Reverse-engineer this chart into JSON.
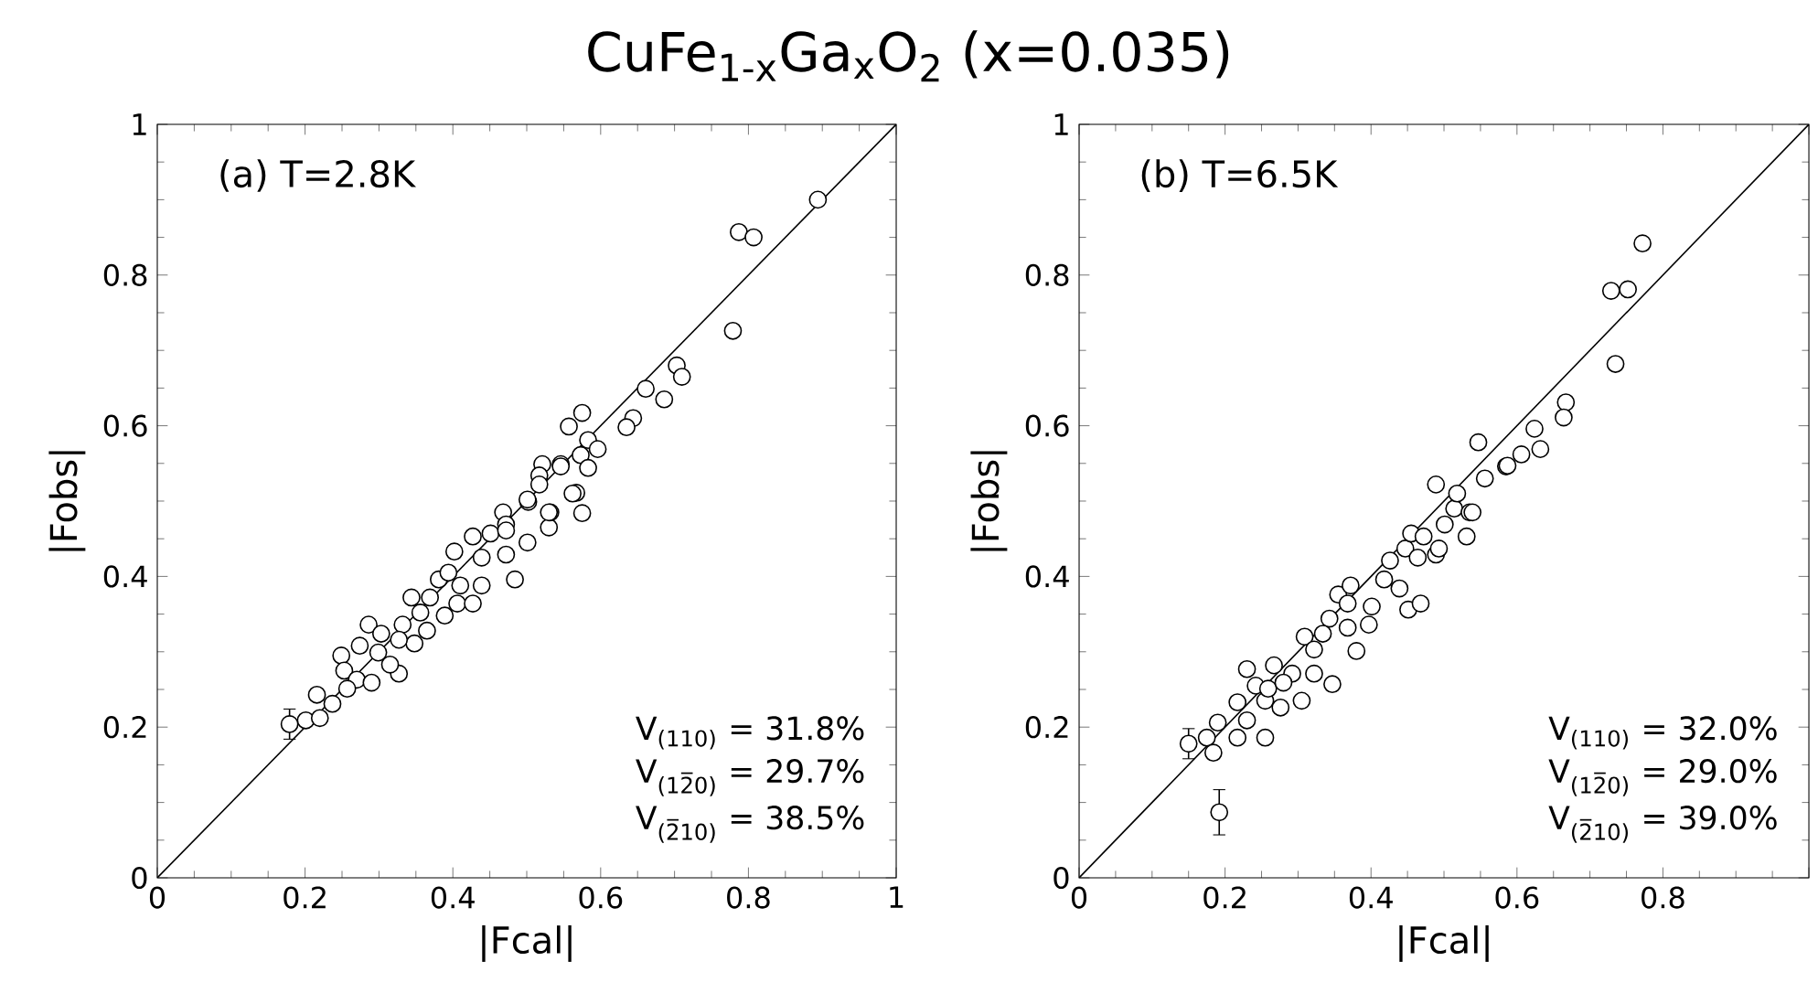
{
  "chart_data": [
    {
      "type": "scatter",
      "title": "CuFe$_{1-x}$Ga$_{x}$O$_{2}$ (x=0.035)",
      "xlabel": "|Fcal|",
      "ylabel": "|Fobs|",
      "xlim": [
        0,
        1
      ],
      "ylim": [
        0,
        1
      ],
      "xticks": [
        0,
        0.2,
        0.4,
        0.6,
        0.8,
        1
      ],
      "yticks": [
        0,
        0.2,
        0.4,
        0.6,
        0.8,
        1
      ],
      "marker": "circle",
      "annotations": [
        "(a) T=2.8K",
        "V$_{(110)}$ = 31.8%",
        "V$_{(12̅0)}$ = 29.7%",
        "V$_{(2̅10)}$ = 38.5%"
      ],
      "series": [
        {
          "color": "#000000",
          "x": [
            0.894,
            0.787,
            0.807,
            0.779,
            0.703,
            0.71,
            0.661,
            0.686,
            0.644,
            0.635,
            0.575,
            0.557,
            0.583,
            0.596,
            0.546,
            0.521,
            0.573,
            0.583,
            0.517,
            0.567,
            0.575,
            0.53,
            0.502,
            0.532,
            0.468,
            0.472,
            0.179,
            0.201,
            0.22,
            0.216,
            0.237,
            0.249,
            0.253,
            0.27,
            0.274,
            0.29,
            0.286,
            0.303,
            0.299,
            0.327,
            0.315,
            0.332,
            0.348,
            0.344,
            0.356,
            0.369,
            0.365,
            0.381,
            0.394,
            0.41,
            0.406,
            0.389,
            0.402,
            0.427,
            0.439,
            0.439,
            0.427,
            0.451,
            0.472,
            0.484,
            0.501,
            0.472,
            0.501,
            0.53,
            0.517,
            0.546,
            0.562,
            0.257,
            0.327
          ],
          "values": [
            0.9,
            0.857,
            0.85,
            0.726,
            0.68,
            0.665,
            0.649,
            0.635,
            0.61,
            0.598,
            0.617,
            0.599,
            0.581,
            0.569,
            0.549,
            0.549,
            0.561,
            0.544,
            0.534,
            0.511,
            0.484,
            0.465,
            0.499,
            0.485,
            0.485,
            0.469,
            0.204,
            0.209,
            0.212,
            0.243,
            0.231,
            0.295,
            0.275,
            0.263,
            0.308,
            0.259,
            0.336,
            0.324,
            0.299,
            0.271,
            0.283,
            0.336,
            0.311,
            0.372,
            0.352,
            0.372,
            0.328,
            0.396,
            0.405,
            0.388,
            0.364,
            0.348,
            0.433,
            0.453,
            0.425,
            0.388,
            0.364,
            0.457,
            0.429,
            0.396,
            0.445,
            0.461,
            0.502,
            0.485,
            0.522,
            0.546,
            0.51,
            0.251,
            0.316
          ],
          "errors": [
            null,
            null,
            null,
            null,
            null,
            null,
            null,
            null,
            null,
            null,
            null,
            null,
            null,
            null,
            null,
            null,
            null,
            null,
            null,
            null,
            null,
            null,
            null,
            null,
            null,
            null,
            0.02,
            null,
            null,
            null,
            null,
            null,
            null,
            null,
            null,
            null,
            null,
            null,
            null,
            null,
            null,
            null,
            null,
            null,
            null,
            null,
            null,
            null,
            null,
            null,
            null,
            null,
            null,
            null,
            null,
            null,
            null,
            null,
            null,
            null,
            null,
            null,
            null,
            null,
            null,
            null,
            null,
            null,
            null
          ]
        },
        {
          "type": "line",
          "marker": "none",
          "color": "#000000",
          "x": [
            0,
            1
          ],
          "values": [
            0,
            1
          ]
        }
      ]
    },
    {
      "type": "scatter",
      "xlabel": "|Fcal|",
      "ylabel": "|Fobs|",
      "xlim": [
        0,
        1
      ],
      "ylim": [
        0,
        1
      ],
      "xticks": [
        0,
        0.2,
        0.4,
        0.6,
        0.8,
        {
          "value": 1,
          "label": null
        }
      ],
      "yticks": [
        0,
        0.2,
        0.4,
        0.6,
        0.8,
        1
      ],
      "marker": "circle",
      "annotations": [
        "(b) T=6.5K",
        "V$_{(110)}$ = 32.0%",
        "V$_{(12̅0)}$ = 29.0%",
        "V$_{(2̅10)}$ = 39.0%"
      ],
      "series": [
        {
          "color": "#000000",
          "x": [
            0.192,
            0.15,
            0.175,
            0.184,
            0.19,
            0.217,
            0.255,
            0.23,
            0.217,
            0.255,
            0.23,
            0.242,
            0.267,
            0.259,
            0.292,
            0.305,
            0.276,
            0.28,
            0.322,
            0.347,
            0.309,
            0.322,
            0.343,
            0.334,
            0.355,
            0.368,
            0.372,
            0.368,
            0.38,
            0.397,
            0.401,
            0.418,
            0.426,
            0.439,
            0.451,
            0.468,
            0.447,
            0.455,
            0.472,
            0.464,
            0.489,
            0.493,
            0.501,
            0.514,
            0.531,
            0.535,
            0.489,
            0.518,
            0.556,
            0.585,
            0.547,
            0.772,
            0.729,
            0.752,
            0.735,
            0.667,
            0.664,
            0.624,
            0.632,
            0.606,
            0.587,
            0.539
          ],
          "values": [
            0.087,
            0.178,
            0.186,
            0.166,
            0.206,
            0.186,
            0.186,
            0.209,
            0.233,
            0.235,
            0.277,
            0.255,
            0.282,
            0.251,
            0.271,
            0.235,
            0.226,
            0.259,
            0.271,
            0.257,
            0.32,
            0.303,
            0.344,
            0.324,
            0.376,
            0.364,
            0.388,
            0.332,
            0.301,
            0.336,
            0.36,
            0.396,
            0.421,
            0.384,
            0.356,
            0.364,
            0.437,
            0.457,
            0.453,
            0.425,
            0.429,
            0.437,
            0.469,
            0.49,
            0.453,
            0.485,
            0.522,
            0.51,
            0.53,
            0.546,
            0.578,
            0.842,
            0.779,
            0.781,
            0.682,
            0.631,
            0.611,
            0.596,
            0.569,
            0.562,
            0.547,
            0.485
          ],
          "errors": [
            0.03,
            0.02,
            null,
            null,
            null,
            null,
            null,
            null,
            null,
            null,
            null,
            null,
            null,
            null,
            null,
            null,
            null,
            null,
            null,
            null,
            null,
            null,
            null,
            null,
            null,
            null,
            null,
            null,
            null,
            null,
            null,
            null,
            null,
            null,
            null,
            null,
            null,
            null,
            null,
            null,
            null,
            null,
            null,
            null,
            null,
            null,
            null,
            null,
            null,
            null,
            null,
            null,
            null,
            null,
            null,
            null,
            null,
            null,
            null,
            null,
            null,
            null
          ]
        },
        {
          "type": "line",
          "marker": "none",
          "color": "#000000",
          "x": [
            0,
            1
          ],
          "values": [
            0,
            1
          ]
        }
      ]
    }
  ]
}
